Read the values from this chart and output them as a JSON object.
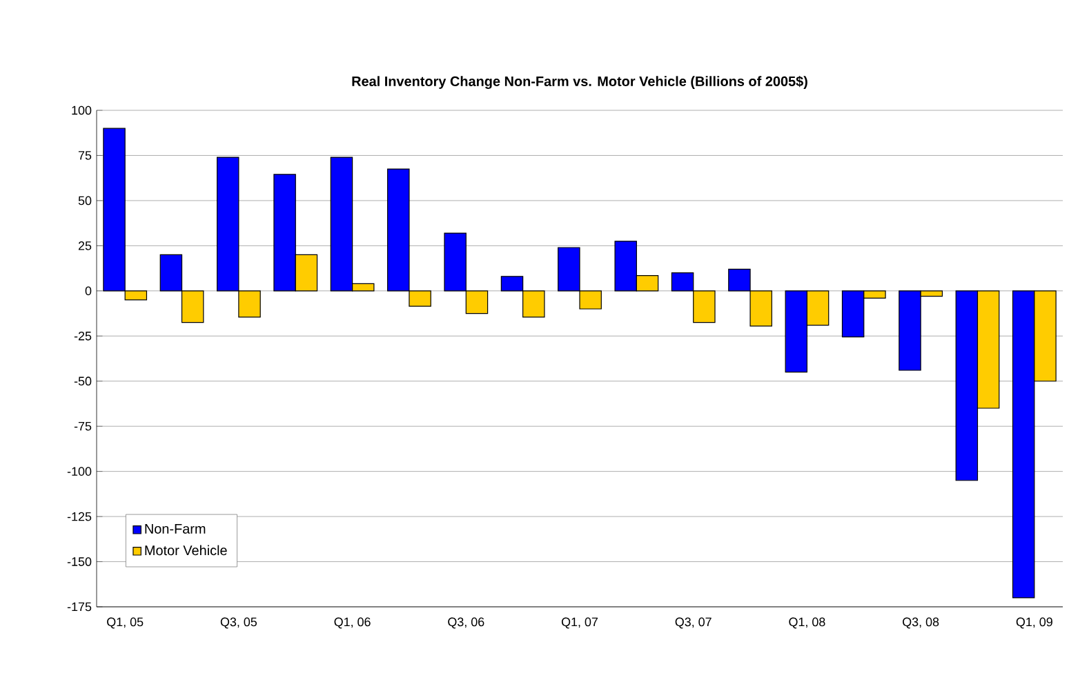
{
  "chart_data": {
    "type": "bar",
    "title": "Real Inventory Change Non-Farm vs. Motor Vehicle (Billions of 2005$)",
    "categories": [
      "Q1, 05",
      null,
      "Q3, 05",
      null,
      "Q1, 06",
      null,
      "Q3, 06",
      null,
      "Q1, 07",
      null,
      "Q3, 07",
      null,
      "Q1, 08",
      null,
      "Q3, 08",
      null,
      "Q1, 09"
    ],
    "series": [
      {
        "name": "Non-Farm",
        "color": "#0000ff",
        "values": [
          90,
          20,
          74,
          64.5,
          74,
          67.5,
          32,
          8,
          24,
          27.5,
          10,
          12,
          -45,
          -25.5,
          -44,
          -105,
          -170
        ]
      },
      {
        "name": "Motor Vehicle",
        "color": "#ffcc00",
        "values": [
          -5,
          -17.5,
          -14.5,
          20,
          4,
          -8.5,
          -12.5,
          -14.5,
          -10,
          8.5,
          -17.5,
          -19.5,
          -19,
          -4,
          -3,
          -65,
          -50
        ]
      }
    ],
    "ylim": [
      -175,
      100
    ],
    "yticks": [
      -175,
      -150,
      -125,
      -100,
      -75,
      -50,
      -25,
      0,
      25,
      50,
      75,
      100
    ],
    "grid": "y",
    "legend": "bottom left"
  }
}
